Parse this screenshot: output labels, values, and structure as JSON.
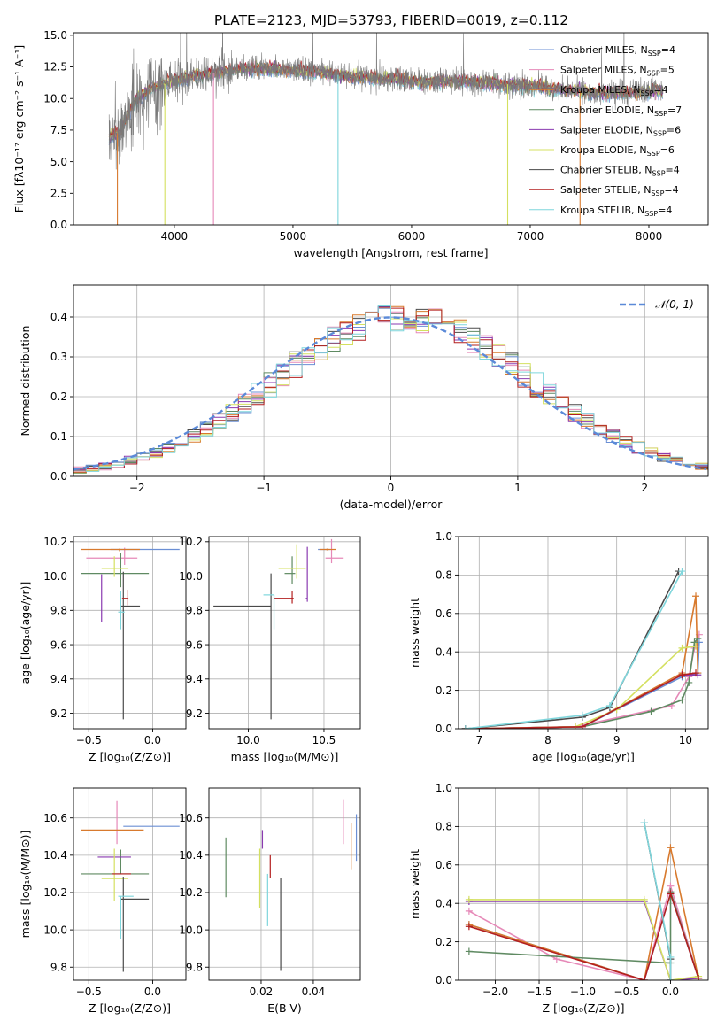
{
  "figure_title": "PLATE=2123, MJD=53793, FIBERID=0019, z=0.112",
  "colors": [
    "#6b8fd4",
    "#e689b8",
    "#d87a2e",
    "#5f8a62",
    "#8a3ab0",
    "#d4e060",
    "#4a4a4a",
    "#b31f1f",
    "#7fd6dc"
  ],
  "chart_data": [
    {
      "id": "spectrum",
      "type": "line",
      "title": "PLATE=2123, MJD=53793, FIBERID=0019, z=0.112",
      "xlabel": "wavelength [Angstrom, rest frame]",
      "ylabel": "Flux [fλ10⁻¹⁷ erg cm⁻² s⁻¹ A⁻¹]",
      "xlim": [
        3150,
        8500
      ],
      "ylim": [
        0,
        15.2
      ],
      "xticks": [
        4000,
        5000,
        6000,
        7000,
        8000
      ],
      "yticks": [
        0.0,
        2.5,
        5.0,
        7.5,
        10.0,
        12.5,
        15.0
      ],
      "grid": false,
      "legend": "top-right",
      "legend_entries": [
        {
          "name": "Chabrier MILES, N",
          "sub": "SSP",
          "suffix": "=4"
        },
        {
          "name": "Salpeter MILES, N",
          "sub": "SSP",
          "suffix": "=5"
        },
        {
          "name": "Kroupa MILES, N",
          "sub": "SSP",
          "suffix": "=4"
        },
        {
          "name": "Chabrier ELODIE, N",
          "sub": "SSP",
          "suffix": "=7"
        },
        {
          "name": "Salpeter ELODIE, N",
          "sub": "SSP",
          "suffix": "=6"
        },
        {
          "name": "Kroupa ELODIE, N",
          "sub": "SSP",
          "suffix": "=6"
        },
        {
          "name": "Chabrier STELIB, N",
          "sub": "SSP",
          "suffix": "=4"
        },
        {
          "name": "Salpeter STELIB, N",
          "sub": "SSP",
          "suffix": "=4"
        },
        {
          "name": "Kroupa STELIB, N",
          "sub": "SSP",
          "suffix": "=4"
        }
      ],
      "observed_continuum": [
        [
          3450,
          6.9
        ],
        [
          3550,
          7.4
        ],
        [
          3650,
          9.6
        ],
        [
          3800,
          10.8
        ],
        [
          4000,
          11.4
        ],
        [
          4300,
          12.0
        ],
        [
          4600,
          12.4
        ],
        [
          4900,
          12.3
        ],
        [
          5200,
          12.1
        ],
        [
          5500,
          11.7
        ],
        [
          5800,
          11.6
        ],
        [
          6100,
          11.3
        ],
        [
          6400,
          11.4
        ],
        [
          6700,
          11.2
        ],
        [
          7000,
          11.0
        ],
        [
          7300,
          10.7
        ],
        [
          7600,
          10.4
        ],
        [
          7900,
          10.5
        ],
        [
          8100,
          10.6
        ]
      ],
      "model_cutoff_lines": [
        3520,
        3920,
        4330,
        5380,
        6810,
        7420
      ]
    },
    {
      "id": "residuals",
      "type": "step",
      "xlabel": "(data-model)/error",
      "ylabel": "Normed distribution",
      "xlim": [
        -2.5,
        2.5
      ],
      "ylim": [
        0,
        0.48
      ],
      "xticks": [
        -2,
        -1,
        0,
        1,
        2
      ],
      "yticks": [
        0.0,
        0.1,
        0.2,
        0.3,
        0.4
      ],
      "grid": true,
      "legend": "top-right",
      "reference_label": "𝒩(0, 1)",
      "reference_color": "#5b8ad8",
      "bin_width": 0.1
    },
    {
      "id": "age_vs_Z",
      "type": "errorbar",
      "xlabel": "Z [log₁₀(Z/Z⊙)]",
      "ylabel": "age  [log₁₀(age/yr)]",
      "xlim": [
        -0.62,
        0.26
      ],
      "ylim": [
        9.11,
        10.23
      ],
      "xticks": [
        -0.5,
        0.0
      ],
      "xtick_labels": [
        "−0.5",
        "0.0"
      ],
      "yticks": [
        9.2,
        9.4,
        9.6,
        9.8,
        10.0,
        10.2
      ],
      "grid": true,
      "points": [
        {
          "x": -0.03,
          "xerr": [
            0.3,
            0.24
          ],
          "y": 10.155,
          "yerr": [
            0,
            0
          ],
          "c": 0
        },
        {
          "x": -0.22,
          "xerr": [
            0.3,
            0.1
          ],
          "y": 10.105,
          "yerr": [
            0.04,
            0.06
          ],
          "c": 1
        },
        {
          "x": -0.26,
          "xerr": [
            0.3,
            0.16
          ],
          "y": 10.155,
          "yerr": [
            0.01,
            0.005
          ],
          "c": 2
        },
        {
          "x": -0.25,
          "xerr": [
            0.31,
            0.22
          ],
          "y": 10.015,
          "yerr": [
            0.08,
            0.12
          ],
          "c": 3
        },
        {
          "x": -0.4,
          "xerr": [
            0.0,
            0.0
          ],
          "y": 9.87,
          "yerr": [
            0.14,
            0.14
          ],
          "c": 4
        },
        {
          "x": -0.3,
          "xerr": [
            0.1,
            0.11
          ],
          "y": 10.045,
          "yerr": [
            0.05,
            0.07
          ],
          "c": 5
        },
        {
          "x": -0.23,
          "xerr": [
            0.02,
            0.13
          ],
          "y": 9.825,
          "yerr": [
            0.66,
            0.2
          ],
          "c": 6
        },
        {
          "x": -0.2,
          "xerr": [
            0.04,
            0.01
          ],
          "y": 9.87,
          "yerr": [
            0.04,
            0.05
          ],
          "c": 7
        },
        {
          "x": -0.25,
          "xerr": [
            0.02,
            0.03
          ],
          "y": 9.79,
          "yerr": [
            0.1,
            0.12
          ],
          "c": 8
        }
      ]
    },
    {
      "id": "age_vs_mass",
      "type": "errorbar",
      "xlabel": "mass [log₁₀(M/M⊙)]",
      "xlim": [
        9.74,
        10.74
      ],
      "ylim": [
        9.11,
        10.23
      ],
      "xticks": [
        10.0,
        10.5
      ],
      "yticks": [
        9.2,
        9.4,
        9.6,
        9.8,
        10.0,
        10.2
      ],
      "grid": true,
      "points": [
        {
          "x": 10.54,
          "xerr": [
            0.08,
            0.0
          ],
          "y": 10.155,
          "yerr": [
            0,
            0
          ],
          "c": 0
        },
        {
          "x": 10.55,
          "xerr": [
            0.04,
            0.08
          ],
          "y": 10.105,
          "yerr": [
            0.03,
            0.11
          ],
          "c": 1
        },
        {
          "x": 10.52,
          "xerr": [
            0.05,
            0.06
          ],
          "y": 10.155,
          "yerr": [
            0.005,
            0.005
          ],
          "c": 2
        },
        {
          "x": 10.29,
          "xerr": [
            0.05,
            0.02
          ],
          "y": 10.015,
          "yerr": [
            0.06,
            0.1
          ],
          "c": 3
        },
        {
          "x": 10.39,
          "xerr": [
            0.01,
            0.0
          ],
          "y": 9.87,
          "yerr": [
            0.02,
            0.3
          ],
          "c": 4
        },
        {
          "x": 10.32,
          "xerr": [
            0.12,
            0.06
          ],
          "y": 10.045,
          "yerr": [
            0.06,
            0.14
          ],
          "c": 5
        },
        {
          "x": 10.15,
          "xerr": [
            0.38,
            0.0
          ],
          "y": 9.825,
          "yerr": [
            0.66,
            0.19
          ],
          "c": 6
        },
        {
          "x": 10.29,
          "xerr": [
            0.12,
            0.01
          ],
          "y": 9.87,
          "yerr": [
            0.03,
            0.04
          ],
          "c": 7
        },
        {
          "x": 10.17,
          "xerr": [
            0.07,
            0.0
          ],
          "y": 9.89,
          "yerr": [
            0.2,
            0.0
          ],
          "c": 8
        }
      ]
    },
    {
      "id": "massweight_vs_age",
      "type": "line",
      "xlabel": "age  [log₁₀(age/yr)]",
      "ylabel": "mass weight",
      "xlim": [
        6.7,
        10.33
      ],
      "ylim": [
        0,
        1.0
      ],
      "xticks": [
        7,
        8,
        9,
        10
      ],
      "yticks": [
        0.0,
        0.2,
        0.4,
        0.6,
        0.8,
        1.0
      ],
      "grid": true,
      "series": [
        {
          "c": 0,
          "x": [
            6.8,
            8.5,
            9.95,
            10.18,
            10.2
          ],
          "y": [
            0.0,
            0.01,
            0.27,
            0.29,
            0.45
          ]
        },
        {
          "c": 1,
          "x": [
            6.8,
            8.4,
            9.8,
            10.05,
            10.13,
            10.2
          ],
          "y": [
            0.0,
            0.01,
            0.12,
            0.27,
            0.42,
            0.49
          ]
        },
        {
          "c": 2,
          "x": [
            6.8,
            8.5,
            9.95,
            10.15,
            10.18
          ],
          "y": [
            0.0,
            0.01,
            0.29,
            0.69,
            0.29
          ]
        },
        {
          "c": 3,
          "x": [
            6.8,
            8.5,
            9.5,
            9.95,
            10.05,
            10.13,
            10.18
          ],
          "y": [
            0.0,
            0.01,
            0.09,
            0.15,
            0.24,
            0.45,
            0.47
          ]
        },
        {
          "c": 4,
          "x": [
            6.8,
            8.5,
            9.95,
            10.18
          ],
          "y": [
            0.0,
            0.01,
            0.28,
            0.28
          ]
        },
        {
          "c": 5,
          "x": [
            6.8,
            8.4,
            9.0,
            9.95,
            10.15
          ],
          "y": [
            0.0,
            0.01,
            0.1,
            0.42,
            0.43
          ]
        },
        {
          "c": 6,
          "x": [
            6.8,
            8.5,
            8.9,
            9.9
          ],
          "y": [
            0.0,
            0.06,
            0.11,
            0.82
          ]
        },
        {
          "c": 7,
          "x": [
            6.8,
            8.5,
            9.95,
            10.15
          ],
          "y": [
            0.0,
            0.01,
            0.28,
            0.29
          ]
        },
        {
          "c": 8,
          "x": [
            6.8,
            8.5,
            8.9,
            9.95
          ],
          "y": [
            0.0,
            0.07,
            0.12,
            0.82
          ]
        }
      ]
    },
    {
      "id": "mass_vs_Z",
      "type": "errorbar",
      "xlabel": "Z [log₁₀(Z/Z⊙)]",
      "ylabel": "mass [log₁₀(M/M⊙)]",
      "xlim": [
        -0.62,
        0.26
      ],
      "ylim": [
        9.73,
        10.76
      ],
      "xticks": [
        -0.5,
        0.0
      ],
      "xtick_labels": [
        "−0.5",
        "0.0"
      ],
      "yticks": [
        9.8,
        10.0,
        10.2,
        10.4,
        10.6
      ],
      "grid": true,
      "points": [
        {
          "x": -0.03,
          "xerr": [
            0.2,
            0.24
          ],
          "y": 10.555,
          "yerr": [
            0,
            0
          ],
          "c": 0
        },
        {
          "x": -0.28,
          "xerr": [
            0.0,
            0.0
          ],
          "y": 10.57,
          "yerr": [
            0.11,
            0.12
          ],
          "c": 1
        },
        {
          "x": -0.25,
          "xerr": [
            0.31,
            0.18
          ],
          "y": 10.535,
          "yerr": [
            0.0,
            0.0
          ],
          "c": 2
        },
        {
          "x": -0.25,
          "xerr": [
            0.31,
            0.22
          ],
          "y": 10.3,
          "yerr": [
            0.0,
            0.13
          ],
          "c": 3
        },
        {
          "x": -0.3,
          "xerr": [
            0.13,
            0.13
          ],
          "y": 10.39,
          "yerr": [
            0.0,
            0.0
          ],
          "c": 4
        },
        {
          "x": -0.3,
          "xerr": [
            0.1,
            0.11
          ],
          "y": 10.275,
          "yerr": [
            0.12,
            0.16
          ],
          "c": 5
        },
        {
          "x": -0.23,
          "xerr": [
            0.02,
            0.2
          ],
          "y": 10.165,
          "yerr": [
            0.39,
            0.12
          ],
          "c": 6
        },
        {
          "x": -0.22,
          "xerr": [
            0.1,
            0.05
          ],
          "y": 10.3,
          "yerr": [
            0.0,
            0.0
          ],
          "c": 7
        },
        {
          "x": -0.25,
          "xerr": [
            0.02,
            0.1
          ],
          "y": 10.18,
          "yerr": [
            0.23,
            0.0
          ],
          "c": 8
        }
      ]
    },
    {
      "id": "mass_vs_EBV",
      "type": "errorbar",
      "xlabel": "E(B-V)",
      "xlim": [
        0.0,
        0.058
      ],
      "ylim": [
        9.73,
        10.76
      ],
      "xticks": [
        0.02,
        0.04
      ],
      "yticks": [
        9.8,
        10.0,
        10.2,
        10.4,
        10.6
      ],
      "grid": true,
      "points": [
        {
          "x": 0.0565,
          "xerr": [
            0,
            0
          ],
          "y": 10.49,
          "yerr": [
            0.12,
            0.13
          ],
          "c": 0
        },
        {
          "x": 0.0515,
          "xerr": [
            0,
            0
          ],
          "y": 10.58,
          "yerr": [
            0.12,
            0.12
          ],
          "c": 1
        },
        {
          "x": 0.0545,
          "xerr": [
            0,
            0
          ],
          "y": 10.455,
          "yerr": [
            0.13,
            0.12
          ],
          "c": 2
        },
        {
          "x": 0.0065,
          "xerr": [
            0,
            0
          ],
          "y": 10.335,
          "yerr": [
            0.16,
            0.16
          ],
          "c": 3
        },
        {
          "x": 0.0205,
          "xerr": [
            0,
            0
          ],
          "y": 10.485,
          "yerr": [
            0.05,
            0.05
          ],
          "c": 4
        },
        {
          "x": 0.0195,
          "xerr": [
            0,
            0
          ],
          "y": 10.275,
          "yerr": [
            0.16,
            0.16
          ],
          "c": 5
        },
        {
          "x": 0.0275,
          "xerr": [
            0,
            0
          ],
          "y": 10.03,
          "yerr": [
            0.25,
            0.25
          ],
          "c": 6
        },
        {
          "x": 0.0235,
          "xerr": [
            0,
            0
          ],
          "y": 10.34,
          "yerr": [
            0.06,
            0.06
          ],
          "c": 7
        },
        {
          "x": 0.0225,
          "xerr": [
            0,
            0
          ],
          "y": 10.16,
          "yerr": [
            0.14,
            0.14
          ],
          "c": 8
        }
      ]
    },
    {
      "id": "massweight_vs_Z",
      "type": "line",
      "xlabel": "Z [log₁₀(Z/Z⊙)]",
      "ylabel": "mass weight",
      "xlim": [
        -2.42,
        0.43
      ],
      "ylim": [
        0,
        1.0
      ],
      "xticks": [
        -2.0,
        -1.5,
        -1.0,
        -0.5,
        0.0
      ],
      "xtick_labels": [
        "−2.0",
        "−1.5",
        "−1.0",
        "−0.5",
        "0.0"
      ],
      "yticks": [
        0.0,
        0.2,
        0.4,
        0.6,
        0.8,
        1.0
      ],
      "grid": true,
      "series": [
        {
          "c": 0,
          "x": [
            -2.3,
            -0.3,
            0.0,
            0.32
          ],
          "y": [
            0.29,
            0.0,
            0.45,
            0.01
          ]
        },
        {
          "c": 1,
          "x": [
            -2.3,
            -1.3,
            -0.3,
            0.0,
            0.32
          ],
          "y": [
            0.36,
            0.11,
            0.0,
            0.49,
            0.01
          ]
        },
        {
          "c": 2,
          "x": [
            -2.3,
            -0.3,
            0.0,
            0.32
          ],
          "y": [
            0.29,
            0.0,
            0.69,
            0.01
          ]
        },
        {
          "c": 3,
          "x": [
            -2.3,
            0.0,
            0.0,
            0.32
          ],
          "y": [
            0.15,
            0.09,
            0.46,
            0.01
          ]
        },
        {
          "c": 4,
          "x": [
            -2.3,
            -0.3,
            0.0,
            0.32
          ],
          "y": [
            0.41,
            0.41,
            0.0,
            0.01
          ]
        },
        {
          "c": 5,
          "x": [
            -2.3,
            -0.3,
            0.0,
            0.32
          ],
          "y": [
            0.42,
            0.42,
            0.0,
            0.02
          ]
        },
        {
          "c": 6,
          "x": [
            -0.3,
            0.0,
            0.0
          ],
          "y": [
            0.82,
            0.11,
            0.0
          ]
        },
        {
          "c": 7,
          "x": [
            -2.3,
            -0.3,
            0.0,
            0.32
          ],
          "y": [
            0.28,
            0.0,
            0.45,
            0.01
          ]
        },
        {
          "c": 8,
          "x": [
            -0.3,
            0.0,
            0.0
          ],
          "y": [
            0.82,
            0.12,
            0.0
          ]
        }
      ]
    }
  ]
}
